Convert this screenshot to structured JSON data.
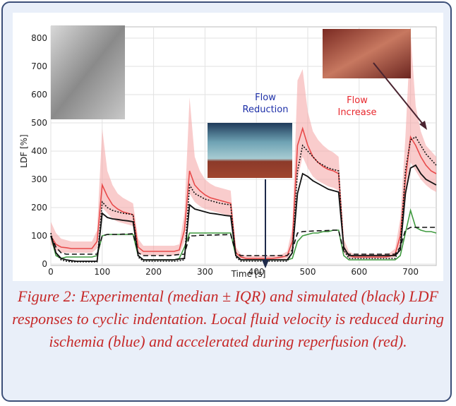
{
  "chart_data": {
    "type": "line",
    "xlabel": "Time [s]",
    "ylabel": "LDF [%]",
    "xlim": [
      0,
      750
    ],
    "ylim": [
      -5,
      840
    ],
    "xticks": [
      0,
      100,
      200,
      300,
      400,
      500,
      600,
      700
    ],
    "yticks": [
      0,
      100,
      200,
      300,
      400,
      500,
      600,
      700,
      800
    ],
    "grid": true,
    "annotations": [
      {
        "text": "Flow\nReduction",
        "color": "#1d2fa8"
      },
      {
        "text": "Flow\nIncrease",
        "color": "#e8282e"
      }
    ],
    "x": [
      0,
      10,
      20,
      30,
      40,
      50,
      60,
      70,
      80,
      90,
      100,
      110,
      120,
      130,
      140,
      150,
      160,
      170,
      180,
      190,
      200,
      210,
      220,
      230,
      240,
      250,
      260,
      270,
      280,
      290,
      300,
      310,
      320,
      330,
      340,
      350,
      360,
      370,
      380,
      390,
      400,
      410,
      420,
      430,
      440,
      450,
      460,
      470,
      480,
      490,
      500,
      510,
      520,
      530,
      540,
      550,
      560,
      570,
      580,
      590,
      600,
      610,
      620,
      630,
      640,
      650,
      660,
      670,
      680,
      690,
      700,
      710,
      720,
      730,
      740,
      750
    ],
    "band": {
      "color": "#f4a3a3",
      "upper": [
        150,
        110,
        90,
        85,
        80,
        80,
        80,
        80,
        80,
        120,
        480,
        330,
        280,
        250,
        235,
        225,
        215,
        90,
        65,
        65,
        65,
        65,
        65,
        65,
        65,
        70,
        180,
        590,
        380,
        330,
        300,
        285,
        275,
        270,
        265,
        260,
        60,
        35,
        30,
        30,
        30,
        30,
        30,
        30,
        32,
        35,
        45,
        130,
        650,
        690,
        540,
        470,
        440,
        420,
        405,
        395,
        380,
        90,
        45,
        35,
        35,
        35,
        35,
        35,
        35,
        35,
        40,
        55,
        160,
        450,
        820,
        560,
        470,
        420,
        400,
        380
      ],
      "lower": [
        70,
        50,
        40,
        40,
        40,
        40,
        40,
        40,
        40,
        55,
        200,
        180,
        160,
        150,
        145,
        140,
        135,
        40,
        30,
        30,
        30,
        30,
        30,
        30,
        30,
        35,
        80,
        250,
        220,
        205,
        195,
        190,
        185,
        180,
        175,
        170,
        25,
        15,
        15,
        15,
        15,
        15,
        15,
        15,
        15,
        15,
        20,
        50,
        300,
        380,
        340,
        310,
        295,
        285,
        275,
        270,
        260,
        40,
        20,
        20,
        20,
        20,
        20,
        20,
        20,
        20,
        20,
        25,
        60,
        220,
        360,
        330,
        300,
        280,
        265,
        255
      ]
    },
    "series": [
      {
        "color": "#e84a4a",
        "dash": "solid",
        "width": 1.6,
        "values": [
          100,
          70,
          60,
          58,
          55,
          55,
          55,
          55,
          55,
          80,
          280,
          240,
          210,
          195,
          185,
          180,
          175,
          60,
          45,
          45,
          45,
          45,
          45,
          45,
          45,
          50,
          120,
          330,
          280,
          260,
          245,
          235,
          230,
          225,
          220,
          215,
          40,
          25,
          20,
          20,
          20,
          20,
          20,
          20,
          22,
          25,
          30,
          80,
          420,
          480,
          420,
          380,
          360,
          345,
          335,
          330,
          320,
          60,
          30,
          25,
          25,
          25,
          25,
          25,
          25,
          25,
          28,
          35,
          100,
          300,
          450,
          420,
          380,
          350,
          330,
          320
        ]
      },
      {
        "color": "#3f9a3f",
        "dash": "solid",
        "width": 1.6,
        "values": [
          100,
          30,
          20,
          25,
          25,
          25,
          25,
          25,
          25,
          30,
          100,
          105,
          105,
          105,
          105,
          105,
          105,
          30,
          15,
          15,
          15,
          15,
          15,
          15,
          15,
          20,
          60,
          110,
          110,
          110,
          110,
          110,
          110,
          110,
          110,
          110,
          30,
          15,
          15,
          15,
          15,
          15,
          15,
          15,
          15,
          15,
          15,
          20,
          80,
          100,
          105,
          110,
          110,
          115,
          115,
          120,
          120,
          30,
          15,
          15,
          15,
          15,
          15,
          15,
          15,
          15,
          15,
          15,
          30,
          110,
          190,
          130,
          120,
          115,
          115,
          110
        ]
      },
      {
        "color": "#111111",
        "dash": "solid",
        "width": 1.8,
        "values": [
          100,
          40,
          20,
          15,
          12,
          10,
          10,
          10,
          10,
          10,
          180,
          165,
          160,
          158,
          155,
          153,
          150,
          30,
          15,
          15,
          15,
          15,
          15,
          15,
          15,
          18,
          20,
          210,
          195,
          190,
          185,
          180,
          178,
          175,
          172,
          170,
          30,
          15,
          15,
          15,
          15,
          15,
          15,
          15,
          15,
          15,
          15,
          40,
          250,
          320,
          310,
          295,
          285,
          275,
          265,
          260,
          255,
          60,
          30,
          30,
          30,
          30,
          30,
          30,
          30,
          30,
          30,
          30,
          50,
          250,
          340,
          350,
          320,
          300,
          290,
          280
        ]
      },
      {
        "color": "#111111",
        "dash": "dotted",
        "width": 1.6,
        "values": [
          110,
          40,
          15,
          10,
          8,
          8,
          8,
          8,
          8,
          8,
          220,
          200,
          190,
          185,
          180,
          178,
          175,
          25,
          10,
          10,
          10,
          10,
          10,
          10,
          10,
          12,
          15,
          280,
          250,
          240,
          230,
          225,
          220,
          215,
          212,
          210,
          25,
          10,
          10,
          10,
          10,
          10,
          10,
          10,
          10,
          10,
          10,
          40,
          330,
          420,
          400,
          380,
          360,
          350,
          340,
          335,
          330,
          50,
          20,
          20,
          20,
          20,
          20,
          20,
          20,
          20,
          20,
          20,
          60,
          330,
          440,
          450,
          420,
          390,
          370,
          350
        ]
      },
      {
        "color": "#111111",
        "dash": "dashed",
        "width": 1.6,
        "values": [
          100,
          60,
          40,
          35,
          35,
          35,
          35,
          35,
          35,
          35,
          100,
          105,
          105,
          105,
          106,
          106,
          108,
          40,
          30,
          30,
          30,
          30,
          30,
          30,
          32,
          34,
          35,
          100,
          100,
          102,
          102,
          103,
          103,
          104,
          104,
          105,
          40,
          30,
          30,
          30,
          30,
          30,
          30,
          30,
          30,
          30,
          30,
          50,
          110,
          115,
          116,
          117,
          118,
          118,
          119,
          120,
          120,
          45,
          35,
          35,
          35,
          35,
          35,
          35,
          35,
          35,
          35,
          35,
          60,
          120,
          130,
          130,
          130,
          130,
          130,
          130
        ]
      }
    ]
  },
  "caption": "Figure 2: Experimental (median ± IQR) and simulated (black) LDF responses to cyclic indentation. Local fluid velocity is reduced during ischemia (blue) and accelerated during reperfusion (red)."
}
